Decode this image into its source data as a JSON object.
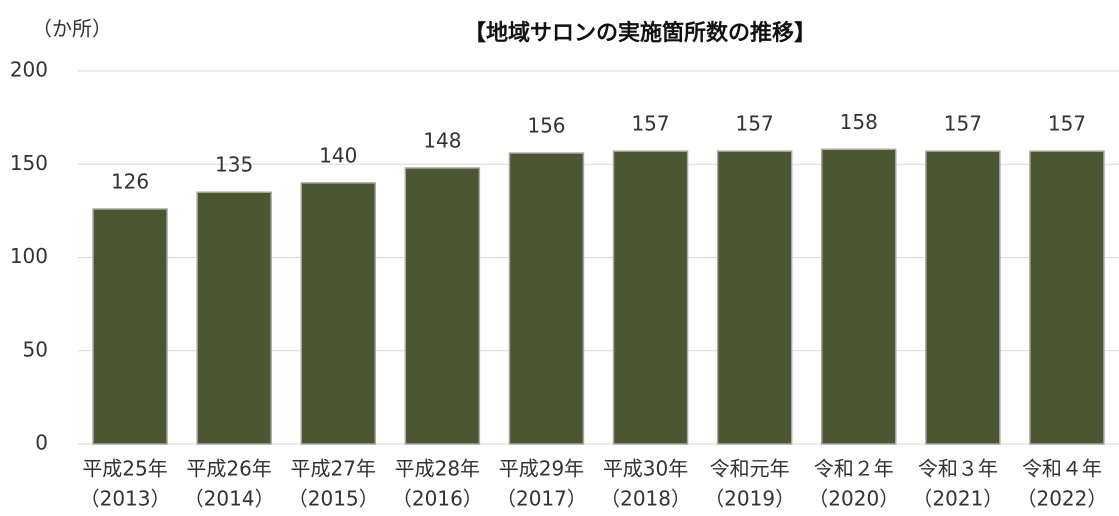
{
  "chart_data": {
    "type": "bar",
    "title": "【地域サロンの実施箇所数の推移】",
    "y_label": "（か所）",
    "categories": [
      [
        "平成25年",
        "（2013）"
      ],
      [
        "平成26年",
        "（2014）"
      ],
      [
        "平成27年",
        "（2015）"
      ],
      [
        "平成28年",
        "（2016）"
      ],
      [
        "平成29年",
        "（2017）"
      ],
      [
        "平成30年",
        "（2018）"
      ],
      [
        "令和元年",
        "（2019）"
      ],
      [
        "令和２年",
        "（2020）"
      ],
      [
        "令和３年",
        "（2021）"
      ],
      [
        "令和４年",
        "（2022）"
      ]
    ],
    "values": [
      126,
      135,
      140,
      148,
      156,
      157,
      157,
      158,
      157,
      157
    ],
    "color": "#4a5730",
    "ylim": [
      0,
      200
    ],
    "yticks": [
      0,
      50,
      100,
      150,
      200
    ],
    "grid": true
  }
}
